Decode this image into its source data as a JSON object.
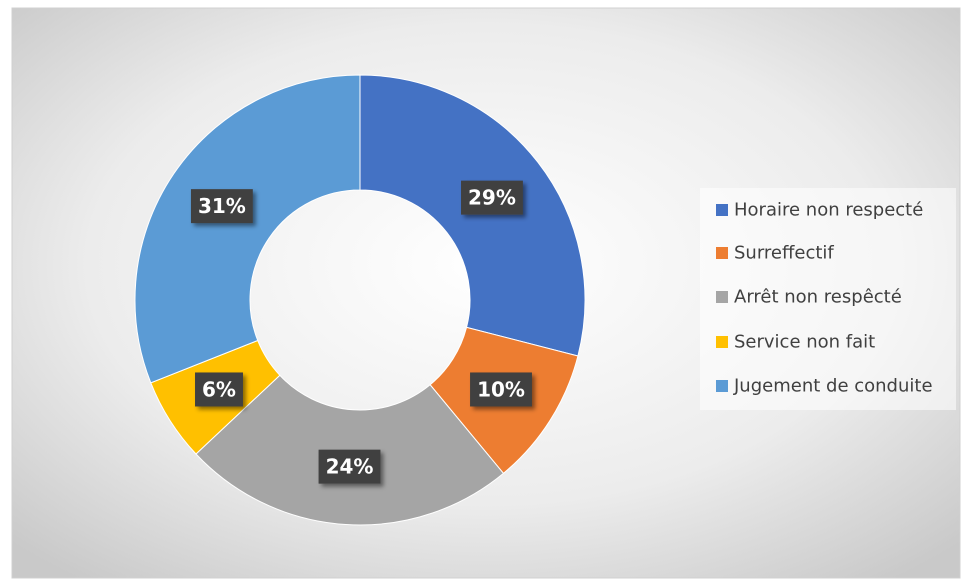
{
  "chart_data": {
    "type": "donut",
    "categories": [
      "Horaire non respecté",
      "Surreffectif",
      "Arrêt non respêcté",
      "Service non fait",
      "Jugement de conduite"
    ],
    "values": [
      29,
      10,
      24,
      6,
      31
    ],
    "value_labels": [
      "29%",
      "10%",
      "24%",
      "6%",
      "31%"
    ],
    "colors": [
      "#4472c4",
      "#ed7d31",
      "#a5a5a5",
      "#ffc000",
      "#5b9bd5"
    ],
    "legend": "right"
  }
}
